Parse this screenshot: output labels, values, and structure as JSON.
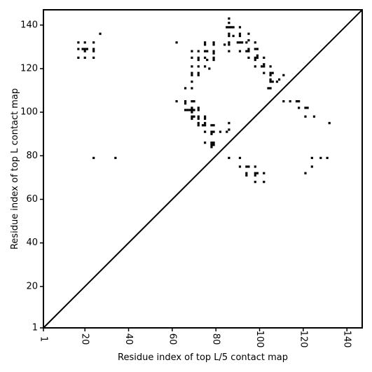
{
  "chart_data": {
    "type": "scatter",
    "title": "",
    "xlabel": "Residue index of top L/5 contact map",
    "ylabel": "Residue index of top L contact map",
    "xlim": [
      1,
      147
    ],
    "ylim": [
      1,
      147
    ],
    "xticks": [
      1,
      20,
      40,
      60,
      80,
      100,
      120,
      140
    ],
    "yticks": [
      1,
      20,
      40,
      60,
      80,
      100,
      120,
      140
    ],
    "diagonal": true,
    "marker_color": "#000000",
    "series": [
      {
        "points_above_diagonal": [
          [
            17,
            132
          ],
          [
            20,
            132
          ],
          [
            24,
            132
          ],
          [
            27,
            136
          ],
          [
            17,
            129
          ],
          [
            19,
            129
          ],
          [
            20,
            129
          ],
          [
            21,
            129
          ],
          [
            24,
            129
          ],
          [
            24,
            128
          ],
          [
            20,
            128
          ],
          [
            17,
            125
          ],
          [
            20,
            125
          ],
          [
            24,
            125
          ],
          [
            62,
            132
          ],
          [
            75,
            132
          ],
          [
            75,
            131
          ],
          [
            79,
            132
          ],
          [
            79,
            131
          ],
          [
            84,
            131
          ],
          [
            86,
            143
          ],
          [
            86,
            141
          ],
          [
            85,
            139
          ],
          [
            86,
            139
          ],
          [
            87,
            139
          ],
          [
            88,
            139
          ],
          [
            91,
            139
          ],
          [
            86,
            136
          ],
          [
            86,
            135
          ],
          [
            88,
            135
          ],
          [
            91,
            136
          ],
          [
            91,
            135
          ],
          [
            95,
            136
          ],
          [
            86,
            132
          ],
          [
            86,
            131
          ],
          [
            90,
            132
          ],
          [
            91,
            132
          ],
          [
            92,
            132
          ],
          [
            94,
            132
          ],
          [
            95,
            133
          ],
          [
            98,
            132
          ],
          [
            69,
            128
          ],
          [
            72,
            128
          ],
          [
            75,
            128
          ],
          [
            76,
            128
          ],
          [
            79,
            128
          ],
          [
            79,
            127
          ],
          [
            86,
            128
          ],
          [
            91,
            128
          ],
          [
            94,
            128
          ],
          [
            95,
            128
          ],
          [
            95,
            129
          ],
          [
            98,
            129
          ],
          [
            99,
            129
          ],
          [
            69,
            125
          ],
          [
            72,
            125
          ],
          [
            72,
            124
          ],
          [
            75,
            125
          ],
          [
            76,
            124
          ],
          [
            79,
            125
          ],
          [
            79,
            124
          ],
          [
            95,
            125
          ],
          [
            98,
            125
          ],
          [
            98,
            124
          ],
          [
            99,
            125
          ],
          [
            99,
            126
          ],
          [
            102,
            125
          ],
          [
            69,
            121
          ],
          [
            72,
            121
          ],
          [
            75,
            121
          ],
          [
            77,
            120
          ],
          [
            98,
            121
          ],
          [
            101,
            121
          ],
          [
            102,
            122
          ],
          [
            102,
            121
          ],
          [
            105,
            121
          ],
          [
            69,
            118
          ],
          [
            69,
            117
          ],
          [
            72,
            118
          ],
          [
            72,
            117
          ],
          [
            102,
            118
          ],
          [
            105,
            118
          ],
          [
            105,
            117
          ],
          [
            106,
            118
          ],
          [
            111,
            117
          ],
          [
            69,
            114
          ],
          [
            105,
            115
          ],
          [
            105,
            114
          ],
          [
            106,
            114
          ],
          [
            108,
            114
          ],
          [
            109,
            115
          ],
          [
            66,
            111
          ],
          [
            69,
            111
          ],
          [
            104,
            111
          ],
          [
            105,
            111
          ]
        ],
        "points_below_diagonal": [
          [
            62,
            105
          ],
          [
            66,
            105
          ],
          [
            66,
            104
          ],
          [
            69,
            105
          ],
          [
            70,
            105
          ],
          [
            111,
            105
          ],
          [
            114,
            105
          ],
          [
            117,
            105
          ],
          [
            118,
            105
          ],
          [
            118,
            102
          ],
          [
            121,
            102
          ],
          [
            122,
            102
          ],
          [
            66,
            101
          ],
          [
            67,
            101
          ],
          [
            68,
            101
          ],
          [
            69,
            101
          ],
          [
            69,
            102
          ],
          [
            70,
            101
          ],
          [
            69,
            100
          ],
          [
            72,
            101
          ],
          [
            72,
            102
          ],
          [
            69,
            98
          ],
          [
            69,
            97
          ],
          [
            70,
            98
          ],
          [
            72,
            98
          ],
          [
            72,
            97
          ],
          [
            75,
            98
          ],
          [
            75,
            97
          ],
          [
            121,
            98
          ],
          [
            125,
            98
          ],
          [
            72,
            95
          ],
          [
            72,
            94
          ],
          [
            74,
            94
          ],
          [
            75,
            95
          ],
          [
            75,
            94
          ],
          [
            78,
            94
          ],
          [
            79,
            94
          ],
          [
            86,
            95
          ],
          [
            132,
            95
          ],
          [
            75,
            91
          ],
          [
            78,
            91
          ],
          [
            78,
            90
          ],
          [
            79,
            91
          ],
          [
            82,
            91
          ],
          [
            85,
            91
          ],
          [
            86,
            92
          ],
          [
            75,
            86
          ],
          [
            78,
            86
          ],
          [
            78,
            85
          ],
          [
            78,
            84
          ],
          [
            79,
            86
          ],
          [
            79,
            85
          ],
          [
            24,
            79
          ],
          [
            34,
            79
          ],
          [
            86,
            79
          ],
          [
            91,
            79
          ],
          [
            124,
            79
          ],
          [
            128,
            79
          ],
          [
            131,
            79
          ],
          [
            91,
            75
          ],
          [
            94,
            75
          ],
          [
            95,
            75
          ],
          [
            98,
            75
          ],
          [
            124,
            75
          ],
          [
            94,
            72
          ],
          [
            94,
            71
          ],
          [
            98,
            72
          ],
          [
            98,
            71
          ],
          [
            99,
            72
          ],
          [
            102,
            72
          ],
          [
            121,
            72
          ],
          [
            98,
            68
          ],
          [
            102,
            68
          ]
        ]
      }
    ]
  }
}
